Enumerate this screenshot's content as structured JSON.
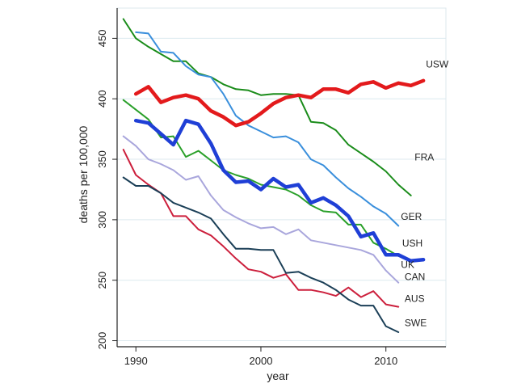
{
  "chart_data": {
    "type": "line",
    "title": "",
    "xlabel": "year",
    "ylabel": "deaths per 100,000",
    "xlim": [
      1988.5,
      2014.8
    ],
    "ylim": [
      195,
      475
    ],
    "xticks": [
      1990,
      2000,
      2010
    ],
    "yticks": [
      200,
      250,
      300,
      350,
      400,
      450
    ],
    "grid": true,
    "legend": "none (direct labels at line ends)",
    "series": [
      {
        "name": "USW",
        "color": "#e31a1c",
        "width": 4.5,
        "x": [
          1990,
          1991,
          1992,
          1993,
          1994,
          1995,
          1996,
          1997,
          1998,
          1999,
          2000,
          2001,
          2002,
          2003,
          2004,
          2005,
          2006,
          2007,
          2008,
          2009,
          2010,
          2011,
          2012,
          2013
        ],
        "y": [
          404,
          410,
          397,
          401,
          403,
          400,
          390,
          385,
          378,
          381,
          388,
          396,
          401,
          403,
          401,
          408,
          408,
          405,
          412,
          414,
          409,
          413,
          411,
          415
        ]
      },
      {
        "name": "FRA",
        "color": "#1a8c1a",
        "width": 2,
        "x": [
          1989,
          1990,
          1991,
          1992,
          1993,
          1994,
          1995,
          1996,
          1997,
          1998,
          1999,
          2000,
          2001,
          2002,
          2003,
          2004,
          2005,
          2006,
          2007,
          2008,
          2009,
          2010,
          2011,
          2012
        ],
        "y": [
          466,
          450,
          443,
          437,
          431,
          431,
          421,
          418,
          412,
          408,
          407,
          403,
          404,
          404,
          403,
          381,
          380,
          374,
          362,
          355,
          348,
          340,
          329,
          320
        ]
      },
      {
        "name": "GER",
        "color": "#3a8fdc",
        "width": 2,
        "x": [
          1990,
          1991,
          1992,
          1993,
          1994,
          1995,
          1996,
          1997,
          1998,
          1999,
          2000,
          2001,
          2002,
          2003,
          2004,
          2005,
          2006,
          2007,
          2008,
          2009,
          2010,
          2011
        ],
        "y": [
          455,
          454,
          439,
          438,
          427,
          420,
          418,
          404,
          386,
          378,
          373,
          368,
          369,
          364,
          350,
          345,
          335,
          326,
          319,
          311,
          305,
          295
        ]
      },
      {
        "name": "USH",
        "color": "#2aa02a",
        "width": 2,
        "x": [
          1989,
          1990,
          1991,
          1992,
          1993,
          1994,
          1995,
          1996,
          1997,
          1998,
          1999,
          2000,
          2001,
          2002,
          2003,
          2004,
          2005,
          2006,
          2007,
          2008,
          2009,
          2010,
          2011
        ],
        "y": [
          399,
          391,
          383,
          368,
          369,
          352,
          357,
          349,
          341,
          337,
          334,
          329,
          327,
          325,
          320,
          312,
          307,
          306,
          296,
          296,
          281,
          276,
          270
        ]
      },
      {
        "name": "UK",
        "color": "#1f3fd6",
        "width": 4.5,
        "x": [
          1990,
          1991,
          1992,
          1993,
          1994,
          1995,
          1996,
          1997,
          1998,
          1999,
          2000,
          2001,
          2002,
          2003,
          2004,
          2005,
          2006,
          2007,
          2008,
          2009,
          2010,
          2011,
          2012,
          2013
        ],
        "y": [
          382,
          380,
          371,
          362,
          382,
          379,
          363,
          341,
          331,
          332,
          325,
          334,
          327,
          329,
          314,
          318,
          312,
          303,
          286,
          289,
          271,
          271,
          266,
          267
        ]
      },
      {
        "name": "CAN",
        "color": "#a9a6dc",
        "width": 2,
        "x": [
          1989,
          1990,
          1991,
          1992,
          1993,
          1994,
          1995,
          1996,
          1997,
          1998,
          1999,
          2000,
          2001,
          2002,
          2003,
          2004,
          2005,
          2006,
          2007,
          2008,
          2009,
          2010,
          2011
        ],
        "y": [
          369,
          361,
          350,
          346,
          341,
          333,
          336,
          320,
          308,
          302,
          297,
          293,
          294,
          288,
          292,
          283,
          281,
          279,
          277,
          275,
          271,
          258,
          248
        ]
      },
      {
        "name": "AUS",
        "color": "#cc1f3c",
        "width": 2,
        "x": [
          1989,
          1990,
          1991,
          1992,
          1993,
          1994,
          1995,
          1996,
          1997,
          1998,
          1999,
          2000,
          2001,
          2002,
          2003,
          2004,
          2005,
          2006,
          2007,
          2008,
          2009,
          2010,
          2011
        ],
        "y": [
          358,
          337,
          329,
          322,
          303,
          303,
          292,
          287,
          278,
          268,
          259,
          257,
          252,
          255,
          242,
          242,
          240,
          237,
          244,
          236,
          241,
          230,
          228
        ]
      },
      {
        "name": "SWE",
        "color": "#1b3f57",
        "width": 2,
        "x": [
          1989,
          1990,
          1991,
          1992,
          1993,
          1994,
          1995,
          1996,
          1997,
          1998,
          1999,
          2000,
          2001,
          2002,
          2003,
          2004,
          2005,
          2006,
          2007,
          2008,
          2009,
          2010,
          2011
        ],
        "y": [
          335,
          328,
          328,
          322,
          314,
          310,
          306,
          301,
          288,
          276,
          276,
          275,
          275,
          256,
          257,
          252,
          248,
          242,
          234,
          229,
          229,
          212,
          207
        ]
      }
    ],
    "series_label_positions": {
      "USW": [
        2013.2,
        426
      ],
      "FRA": [
        2012.3,
        349
      ],
      "GER": [
        2011.2,
        300
      ],
      "USH": [
        2011.3,
        278
      ],
      "UK": [
        2011.2,
        260
      ],
      "CAN": [
        2011.5,
        250
      ],
      "AUS": [
        2011.5,
        232
      ],
      "SWE": [
        2011.5,
        212
      ]
    }
  }
}
